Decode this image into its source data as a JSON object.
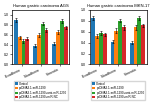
{
  "chart_data": [
    {
      "type": "bar",
      "title": "Human gastric carcinoma AGS",
      "categories": [
        "E-cadherin",
        "N-cadherin",
        "Vimentin"
      ],
      "series": [
        {
          "name": "Control",
          "values": [
            0.9,
            0.38,
            0.42
          ],
          "errors": [
            0.04,
            0.03,
            0.03
          ]
        },
        {
          "name": "pcDNA3.1-miR-1290",
          "values": [
            0.55,
            0.6,
            0.65
          ],
          "errors": [
            0.03,
            0.04,
            0.04
          ]
        },
        {
          "name": "pcDNA3.1-miR-1290+anti-miR-1290",
          "values": [
            0.48,
            0.82,
            0.88
          ],
          "errors": [
            0.04,
            0.03,
            0.04
          ]
        },
        {
          "name": "pcDNA3.1-miR-1290+miR-NC",
          "values": [
            0.52,
            0.7,
            0.75
          ],
          "errors": [
            0.03,
            0.04,
            0.03
          ]
        }
      ],
      "ylim": [
        0,
        1.1
      ],
      "yticks": [
        {
          "value": 0,
          "label": "0.0"
        },
        0.2,
        0.4,
        0.6,
        0.8,
        {
          "value": 1,
          "label": "1.0"
        }
      ],
      "legend": "lower center"
    },
    {
      "type": "bar",
      "title": "Human gastric carcinoma MKN-17",
      "categories": [
        "E-cadherin",
        "N-cadherin",
        "Vimentin"
      ],
      "series": [
        {
          "name": "Control",
          "values": [
            0.85,
            0.42,
            0.4
          ],
          "errors": [
            0.04,
            0.03,
            0.03
          ]
        },
        {
          "name": "pcDNA3.1-miR-1290",
          "values": [
            0.52,
            0.62,
            0.68
          ],
          "errors": [
            0.03,
            0.04,
            0.04
          ]
        },
        {
          "name": "pcDNA3.1-miR-1290+anti-miR-1290",
          "values": [
            0.58,
            0.8,
            0.85
          ],
          "errors": [
            0.04,
            0.03,
            0.04
          ]
        },
        {
          "name": "pcDNA3.1-miR-1290+miR-NC",
          "values": [
            0.55,
            0.68,
            0.72
          ],
          "errors": [
            0.03,
            0.04,
            0.03
          ]
        }
      ],
      "ylim": [
        0,
        1.0
      ],
      "yticks": [
        {
          "value": 0,
          "label": "0.0"
        },
        0.2,
        0.4,
        0.6,
        0.8,
        {
          "value": 1,
          "label": "1.0"
        }
      ],
      "legend": "lower center"
    }
  ]
}
